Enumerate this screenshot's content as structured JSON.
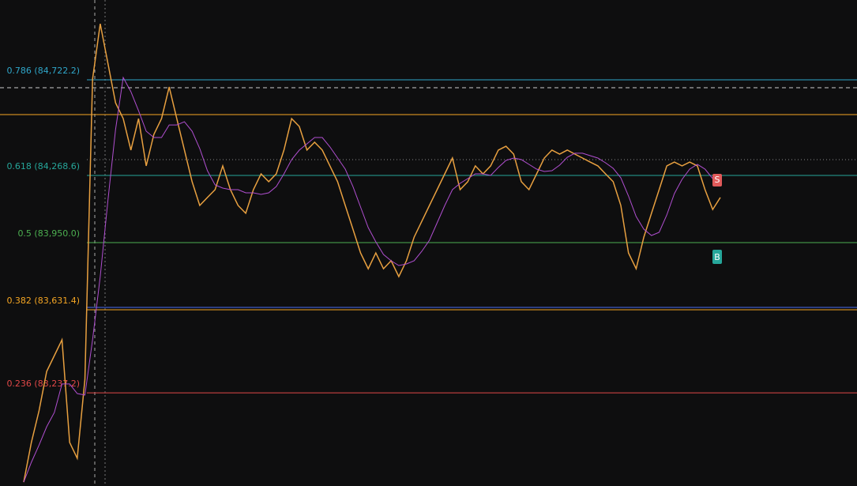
{
  "chart_data": {
    "type": "line",
    "levels": [
      {
        "label": "0.786 (84,722.2)",
        "value": 84722.2,
        "color": "#2fa6c9"
      },
      {
        "label": "0.618 (84,268.6)",
        "value": 84268.6,
        "color": "#26a69a"
      },
      {
        "label": "0.5 (83,950.0)",
        "value": 83950.0,
        "color": "#4caf50"
      },
      {
        "label": "0.382 (83,631.4)",
        "value": 83631.4,
        "color": "#f5a623"
      },
      {
        "label": "0.236 (83,237.2)",
        "value": 83237.2,
        "color": "#e04848"
      }
    ],
    "series": [
      {
        "color": "#e8a040",
        "values": [
          82814,
          83002,
          83152,
          83339,
          83414,
          83489,
          83002,
          82927,
          83302,
          84726,
          84988,
          84801,
          84613,
          84538,
          84389,
          84538,
          84314,
          84463,
          84538,
          84688,
          84538,
          84389,
          84239,
          84126,
          84164,
          84201,
          84314,
          84201,
          84126,
          84089,
          84201,
          84276,
          84239,
          84276,
          84389,
          84538,
          84501,
          84389,
          84426,
          84389,
          84314,
          84239,
          84126,
          84014,
          83901,
          83826,
          83901,
          83826,
          83864,
          83789,
          83864,
          83976,
          84051,
          84126,
          84201,
          84276,
          84351,
          84201,
          84239,
          84314,
          84276,
          84314,
          84389,
          84407,
          84370,
          84239,
          84201,
          84276,
          84351,
          84389,
          84370,
          84389,
          84370,
          84351,
          84332,
          84314,
          84276,
          84239,
          84126,
          83901,
          83826,
          83976,
          84089,
          84201,
          84314,
          84332,
          84314,
          84332,
          84314,
          84201,
          84107,
          84164
        ]
      }
    ],
    "signals": {
      "sell": "S",
      "buy": "B"
    }
  }
}
